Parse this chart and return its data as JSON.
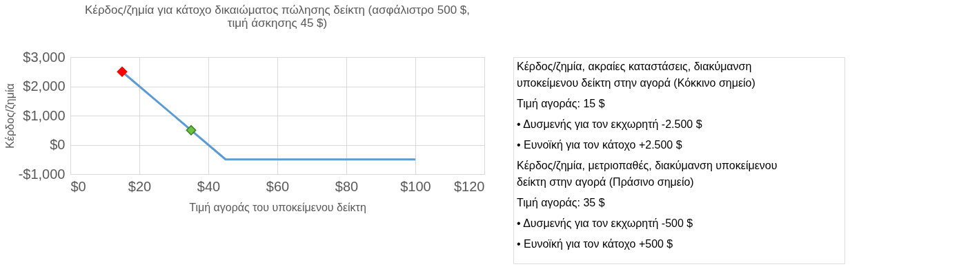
{
  "chart_data": {
    "type": "line",
    "title": "Κέρδος/ζημία για κάτοχο δικαιώματος πώλησης δείκτη (ασφάλιστρο 500 $, τιμή άσκησης 45 $)",
    "xlabel": "Τιμή αγοράς του υποκείμενου δείκτη",
    "ylabel": "Κέρδος/ζημία",
    "xlim": [
      0,
      120
    ],
    "xticks": [
      {
        "value": 0,
        "label": "$0"
      },
      {
        "value": 20,
        "label": "$20"
      },
      {
        "value": 40,
        "label": "$40"
      },
      {
        "value": 60,
        "label": "$60"
      },
      {
        "value": 80,
        "label": "$80"
      },
      {
        "value": 100,
        "label": "$100"
      },
      {
        "value": 120,
        "label": "$120"
      }
    ],
    "ylim": [
      -1000,
      3000
    ],
    "yticks": [
      {
        "value": -1000,
        "label": "-$1,000"
      },
      {
        "value": 0,
        "label": "$0"
      },
      {
        "value": 1000,
        "label": "$1,000"
      },
      {
        "value": 2000,
        "label": "$2,000"
      },
      {
        "value": 3000,
        "label": "$3,000"
      }
    ],
    "grid": true,
    "series": [
      {
        "color": "#5b9bd5",
        "x": [
          15,
          45,
          100
        ],
        "values": [
          2500,
          -500,
          -500
        ]
      },
      {
        "type": "scatter",
        "marker": "diamond",
        "color": "#ff0000",
        "x": [
          15
        ],
        "values": [
          2500
        ]
      },
      {
        "type": "scatter",
        "marker": "diamond",
        "color": "#70c040",
        "x": [
          35
        ],
        "values": [
          500
        ]
      }
    ],
    "annotations": [
      "Κέρδος/ζημία, ακραίες καταστάσεις, διακύμανση υποκείμενου δείκτη στην αγορά (Κόκκινο σημείο)",
      "Τιμή αγοράς: 15 $",
      "• Δυσμενής για τον εκχωρητή -2.500 $",
      "• Ευνοϊκή για τον κάτοχο +2.500 $",
      "Κέρδος/ζημία, μετριοπαθές, διακύμανση υποκείμενου δείκτη στην αγορά (Πράσινο σημείο)",
      "Τιμή αγοράς: 35 $",
      "• Δυσμενής για τον εκχωρητή -500 $",
      "• Ευνοϊκή για τον κάτοχο +500 $"
    ]
  }
}
